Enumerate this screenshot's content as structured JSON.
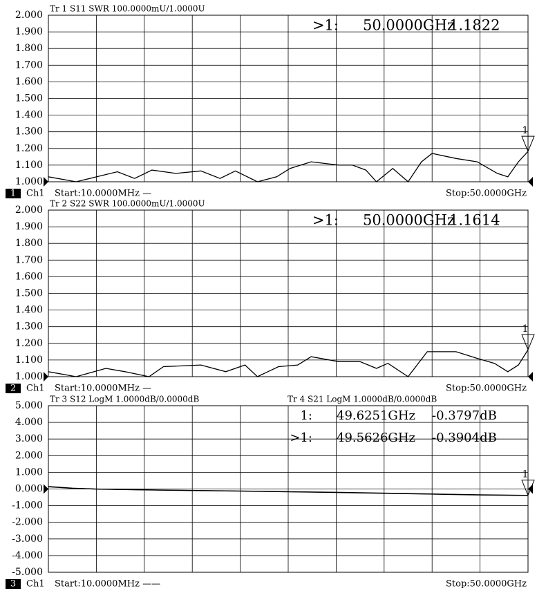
{
  "chart_data": [
    {
      "type": "line",
      "headers": [
        "Tr 1  S11 SWR 100.0000mU/1.0000U"
      ],
      "markers": [
        {
          "label": ">1:",
          "frequency": "50.0000GHz",
          "value": "1.1822"
        }
      ],
      "marker_symbol": "1",
      "channel_number": "1",
      "channel": "Ch1",
      "start": "Start:10.0000MHz —",
      "stop": "Stop:50.0000GHz",
      "xlim": [
        0.01,
        50
      ],
      "ylim": [
        1,
        2
      ],
      "grid": true,
      "yticks": [
        {
          "value": 2,
          "label": "2.000"
        },
        {
          "value": 1.9,
          "label": "1.900"
        },
        {
          "value": 1.8,
          "label": "1.800"
        },
        {
          "value": 1.7,
          "label": "1.700"
        },
        {
          "value": 1.6,
          "label": "1.600"
        },
        {
          "value": 1.5,
          "label": "1.500"
        },
        {
          "value": 1.4,
          "label": "1.400"
        },
        {
          "value": 1.3,
          "label": "1.300"
        },
        {
          "value": 1.2,
          "label": "1.200"
        },
        {
          "value": 1.1,
          "label": "1.100"
        },
        {
          "value": 1,
          "label": "1.000"
        }
      ],
      "series": [
        {
          "color": "#000000",
          "x": [
            0.01,
            2.9,
            7.2,
            9.0,
            10.8,
            13.3,
            15.9,
            17.9,
            19.5,
            21.8,
            23.8,
            25.2,
            27.4,
            30.3,
            31.7,
            33.1,
            34.2,
            35.9,
            37.5,
            38.9,
            40.0,
            42.5,
            44.7,
            46.8,
            47.9,
            49.0,
            50
          ],
          "values": [
            1.03,
            1.0,
            1.06,
            1.02,
            1.07,
            1.05,
            1.065,
            1.02,
            1.065,
            1.0,
            1.03,
            1.08,
            1.12,
            1.1,
            1.1,
            1.07,
            1.0,
            1.08,
            1.0,
            1.12,
            1.17,
            1.14,
            1.12,
            1.05,
            1.03,
            1.12,
            1.1822
          ]
        }
      ]
    },
    {
      "type": "line",
      "headers": [
        "Tr 2  S22 SWR 100.0000mU/1.0000U"
      ],
      "markers": [
        {
          "label": ">1:",
          "frequency": "50.0000GHz",
          "value": "1.1614"
        }
      ],
      "marker_symbol": "1",
      "channel_number": "2",
      "channel": "Ch1",
      "start": "Start:10.0000MHz —",
      "stop": "Stop:50.0000GHz",
      "xlim": [
        0.01,
        50
      ],
      "ylim": [
        1,
        2
      ],
      "grid": true,
      "yticks": [
        {
          "value": 2,
          "label": "2.000"
        },
        {
          "value": 1.9,
          "label": "1.900"
        },
        {
          "value": 1.8,
          "label": "1.800"
        },
        {
          "value": 1.7,
          "label": "1.700"
        },
        {
          "value": 1.6,
          "label": "1.600"
        },
        {
          "value": 1.5,
          "label": "1.500"
        },
        {
          "value": 1.4,
          "label": "1.400"
        },
        {
          "value": 1.3,
          "label": "1.300"
        },
        {
          "value": 1.2,
          "label": "1.200"
        },
        {
          "value": 1.1,
          "label": "1.100"
        },
        {
          "value": 1,
          "label": "1.000"
        }
      ],
      "series": [
        {
          "color": "#000000",
          "x": [
            0.01,
            2.9,
            6.0,
            8.0,
            10.5,
            12.0,
            15.9,
            18.5,
            20.5,
            21.8,
            24.0,
            26.0,
            27.4,
            30.3,
            32.5,
            34.2,
            35.4,
            37.5,
            39.5,
            42.5,
            44.7,
            46.5,
            47.9,
            49.0,
            50
          ],
          "values": [
            1.03,
            1.0,
            1.05,
            1.03,
            1.0,
            1.06,
            1.07,
            1.03,
            1.07,
            1.0,
            1.06,
            1.07,
            1.12,
            1.09,
            1.09,
            1.05,
            1.08,
            1.0,
            1.15,
            1.15,
            1.11,
            1.08,
            1.03,
            1.07,
            1.1614
          ]
        }
      ]
    },
    {
      "type": "line",
      "headers": [
        "Tr 3  S12 LogM 1.0000dB/0.0000dB",
        "Tr 4  S21 LogM 1.0000dB/0.0000dB"
      ],
      "markers": [
        {
          "label": "1:",
          "frequency": "49.6251GHz",
          "value": "-0.3797dB"
        },
        {
          "label": ">1:",
          "frequency": "49.5626GHz",
          "value": "-0.3904dB"
        }
      ],
      "marker_symbol": "1",
      "channel_number": "3",
      "channel": "Ch1",
      "start": "Start:10.0000MHz ——",
      "stop": "Stop:50.0000GHz",
      "xlim": [
        0.01,
        50
      ],
      "ylim": [
        -5,
        5
      ],
      "grid": true,
      "yticks": [
        {
          "value": 5,
          "label": "5.000"
        },
        {
          "value": 4,
          "label": "4.000"
        },
        {
          "value": 3,
          "label": "3.000"
        },
        {
          "value": 2,
          "label": "2.000"
        },
        {
          "value": 1,
          "label": "1.000"
        },
        {
          "value": 0,
          "label": "0.000"
        },
        {
          "value": -1,
          "label": "-1.000"
        },
        {
          "value": -2,
          "label": "-2.000"
        },
        {
          "value": -3,
          "label": "-3.000"
        },
        {
          "value": -4,
          "label": "-4.000"
        },
        {
          "value": -5,
          "label": "-5.000"
        }
      ],
      "series": [
        {
          "color": "#000000",
          "x": [
            0.01,
            2.5,
            5,
            10,
            20,
            30,
            40,
            45,
            49.6,
            50
          ],
          "values": [
            0.15,
            0.05,
            0.0,
            -0.05,
            -0.12,
            -0.2,
            -0.3,
            -0.35,
            -0.38,
            -0.38
          ]
        },
        {
          "color": "#000000",
          "x": [
            0.01,
            2.5,
            5,
            10,
            20,
            30,
            40,
            45,
            49.6,
            50
          ],
          "values": [
            0.13,
            0.04,
            -0.01,
            -0.06,
            -0.13,
            -0.21,
            -0.31,
            -0.36,
            -0.39,
            -0.39
          ]
        }
      ]
    }
  ]
}
